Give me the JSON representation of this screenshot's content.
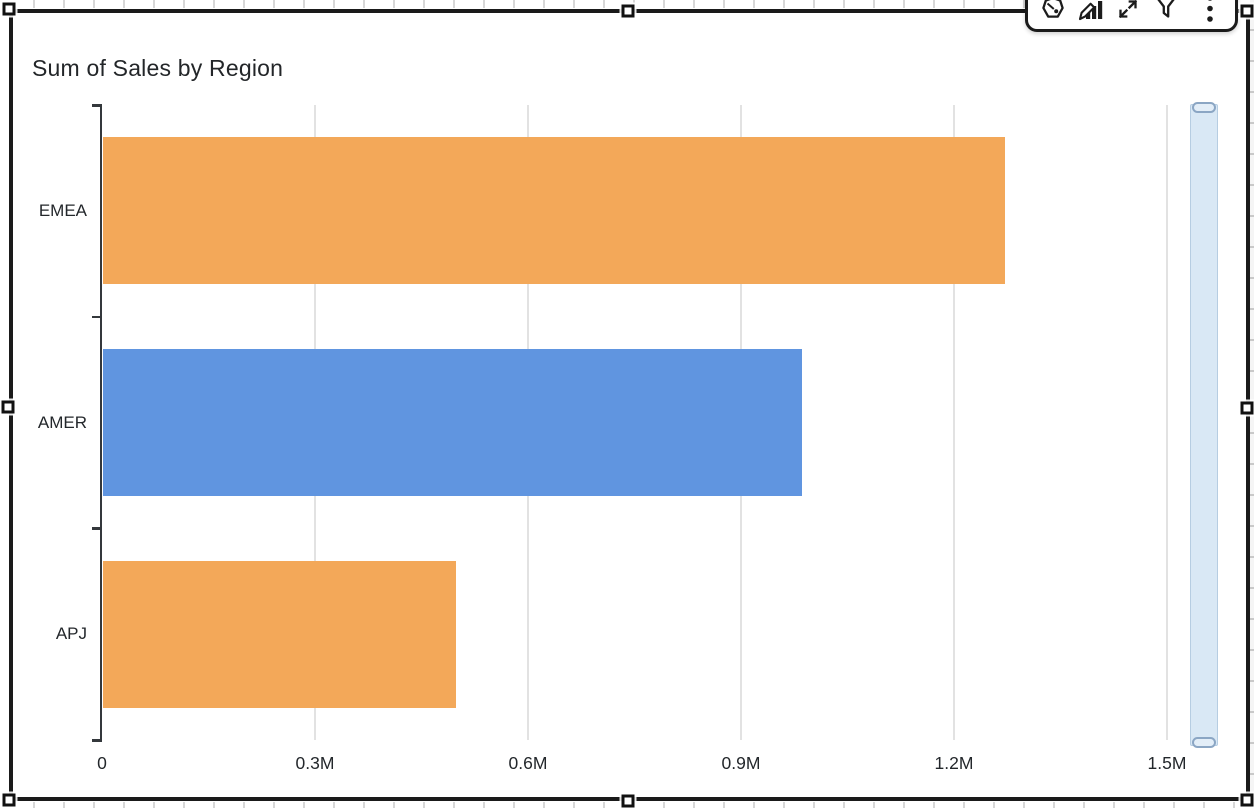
{
  "canvas": {
    "background": "#ffffff",
    "grid_tick_color": "#d7d7d7"
  },
  "widget": {
    "title": "Sum of Sales by Region",
    "selected": true,
    "border_color": "#1a1a1a"
  },
  "toolbar": {
    "icons": [
      {
        "name": "insights-badge-icon"
      },
      {
        "name": "edit-visual-icon"
      },
      {
        "name": "maximize-visual-icon"
      },
      {
        "name": "filter-icon"
      },
      {
        "name": "menu-kebab-icon"
      }
    ]
  },
  "chart_data": {
    "type": "bar",
    "orientation": "horizontal",
    "title": "Sum of Sales by Region",
    "categories": [
      "EMEA",
      "AMER",
      "APJ"
    ],
    "values": [
      1270000,
      985000,
      497000
    ],
    "series_colors": [
      "#F3A859",
      "#6095E0",
      "#F3A859"
    ],
    "x_axis": {
      "max": 1500000,
      "ticks": [
        {
          "label": "0",
          "value": 0
        },
        {
          "label": "0.3M",
          "value": 300000
        },
        {
          "label": "0.6M",
          "value": 600000
        },
        {
          "label": "0.9M",
          "value": 900000
        },
        {
          "label": "1.2M",
          "value": 1200000
        },
        {
          "label": "1.5M",
          "value": 1500000
        }
      ]
    },
    "grid": true,
    "legend": false,
    "scrollbar": {
      "visible": true,
      "fill": "#d9e8f5",
      "border": "#b6cde2",
      "handle_border": "#8ba6c4"
    }
  }
}
